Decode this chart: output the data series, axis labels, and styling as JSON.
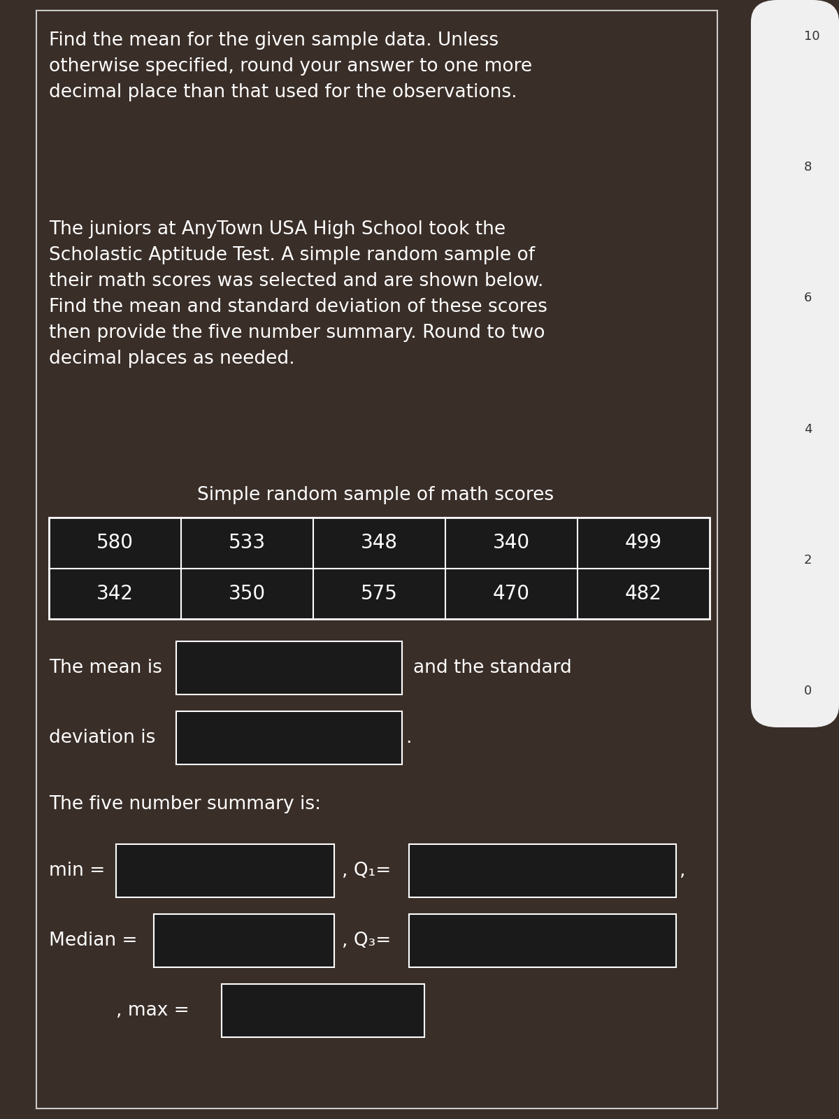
{
  "title_text": "Find the mean for the given sample data. Unless\notherwise specified, round your answer to one more\ndecimal place than that used for the observations.",
  "body_text": "The juniors at AnyTown USA High School took the\nScholastic Aptitude Test. A simple random sample of\ntheir math scores was selected and are shown below.\nFind the mean and standard deviation of these scores\nthen provide the five number summary. Round to two\ndecimal places as needed.",
  "table_title": "Simple random sample of math scores",
  "table_row1": [
    580,
    533,
    348,
    340,
    499
  ],
  "table_row2": [
    342,
    350,
    575,
    470,
    482
  ],
  "label_mean": "The mean is",
  "label_and_std": "and the standard",
  "label_dev": "deviation is",
  "label_five": "The five number summary is:",
  "label_min": "min =",
  "label_q1": ", Q₁=",
  "label_median": "Median =",
  "label_q3": ", Q₃=",
  "label_max": ", max =",
  "text_color": "#ffffff",
  "box_bg": "#1a1a1a",
  "box_border": "#ffffff",
  "table_bg": "#1a1a1a",
  "table_border": "#ffffff",
  "right_numbers": [
    10,
    8,
    6,
    4,
    2,
    0
  ],
  "main_bg": "#3a2e28",
  "right_bg": "#f0f0f0",
  "right_text": "#333333",
  "border_color": "#cccccc",
  "title_fontsize": 19,
  "body_fontsize": 19,
  "table_fontsize": 20,
  "label_fontsize": 19
}
